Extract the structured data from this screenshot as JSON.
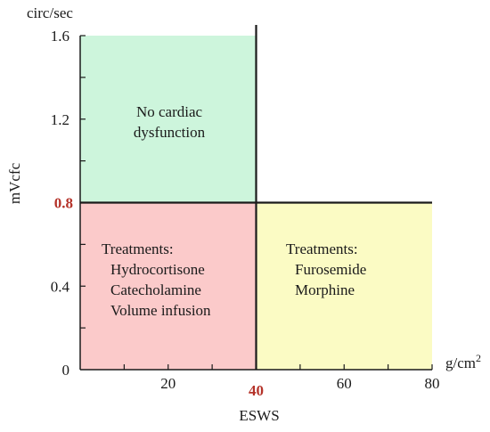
{
  "chart_data": {
    "type": "region-map",
    "xlabel": "ESWS",
    "ylabel": "mVcfc",
    "x_unit": "g/cm",
    "x_unit_superscript": "2",
    "y_unit": "circ/sec",
    "xlim": [
      0,
      80
    ],
    "ylim": [
      0,
      1.6
    ],
    "x_ticks": [
      20,
      40,
      60,
      80
    ],
    "x_tick_labels": [
      "20",
      "40",
      "60",
      "80"
    ],
    "x_minor_ticks": [
      10,
      20,
      30,
      40,
      50,
      60,
      70,
      80
    ],
    "y_ticks": [
      0,
      0.4,
      0.8,
      1.2,
      1.6
    ],
    "y_tick_labels": [
      "0",
      "0.4",
      "0.8",
      "1.2",
      "1.6"
    ],
    "y_minor_ticks": [
      0.2,
      0.4,
      0.6,
      0.8,
      1.0,
      1.2,
      1.4,
      1.6
    ],
    "highlight_x": 40,
    "highlight_y": 0.8,
    "highlight_color": "#b5332a",
    "regions": [
      {
        "id": "no-dysfunction",
        "x": [
          0,
          40
        ],
        "y": [
          0.8,
          1.6
        ],
        "fill": "#cdf5dc",
        "text_color": "#1a1a1a",
        "lines": [
          "No cardiac",
          "dysfunction"
        ]
      },
      {
        "id": "low-low",
        "x": [
          0,
          40
        ],
        "y": [
          0,
          0.8
        ],
        "fill": "#fbcaca",
        "text_color": "#b5332a",
        "lines": [
          "Treatments:",
          "Hydrocortisone",
          "Catecholamine",
          "Volume infusion"
        ]
      },
      {
        "id": "high-low",
        "x": [
          40,
          80
        ],
        "y": [
          0,
          0.8
        ],
        "fill": "#fbfbc4",
        "text_color": "#b8860b",
        "lines": [
          "Treatments:",
          "Furosemide",
          "Morphine"
        ]
      }
    ]
  }
}
